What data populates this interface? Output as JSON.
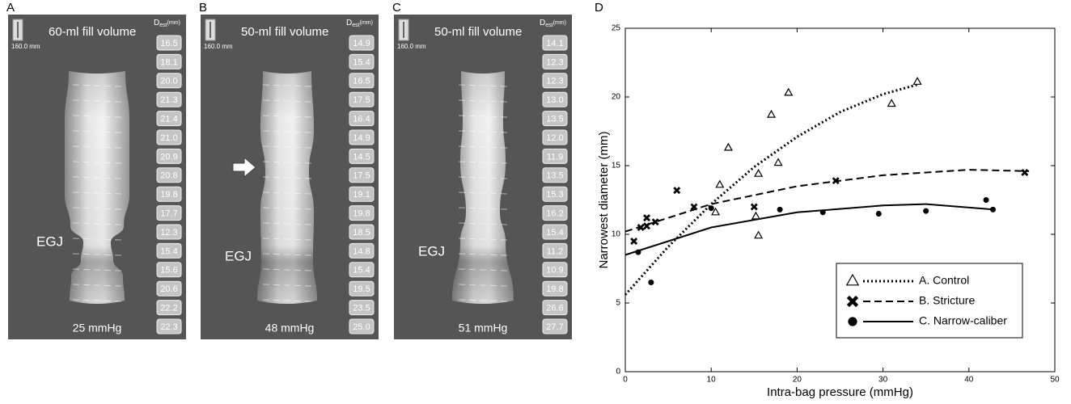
{
  "panels": [
    {
      "letter": "A",
      "title": "60-ml fill volume",
      "scale": "160.0 mm",
      "dest_symbol": "D",
      "dest_subscript": "est",
      "dest_unit": "(mm)",
      "egj": "EGJ",
      "pressure": "25 mmHg",
      "diameters": [
        "16.5",
        "18.1",
        "20.0",
        "21.3",
        "21.4",
        "21.0",
        "20.9",
        "20.8",
        "19.8",
        "17.7",
        "12.3",
        "15.4",
        "15.6",
        "20.6",
        "22.2",
        "22.3"
      ]
    },
    {
      "letter": "B",
      "title": "50-ml fill volume",
      "scale": "160.0 mm",
      "dest_symbol": "D",
      "dest_subscript": "est",
      "dest_unit": "(mm)",
      "egj": "EGJ",
      "pressure": "48 mmHg",
      "diameters": [
        "14.9",
        "15.4",
        "16.5",
        "17.5",
        "16.4",
        "14.9",
        "14.5",
        "17.5",
        "19.1",
        "19.8",
        "18.5",
        "14.8",
        "15.4",
        "19.5",
        "23.5",
        "25.0"
      ]
    },
    {
      "letter": "C",
      "title": "50-ml fill volume",
      "scale": "160.0 mm",
      "dest_symbol": "D",
      "dest_subscript": "est",
      "dest_unit": "(mm)",
      "egj": "EGJ",
      "pressure": "51 mmHg",
      "diameters": [
        "14.1",
        "12.3",
        "12.3",
        "13.0",
        "13.5",
        "12.0",
        "11.9",
        "13.5",
        "15.3",
        "16.2",
        "15.4",
        "11.2",
        "10.9",
        "19.8",
        "26.6",
        "27.7"
      ]
    }
  ],
  "chart_data": {
    "type": "scatter",
    "letter": "D",
    "x_label": "Intra-bag pressure (mmHg)",
    "y_label": "Narrowest diameter (mm)",
    "xlim": [
      0,
      50
    ],
    "xticks": [
      0,
      10,
      20,
      30,
      40,
      50
    ],
    "ylim": [
      0,
      25
    ],
    "yticks": [
      0,
      5,
      10,
      15,
      20,
      25
    ],
    "legend": "lower right",
    "series": [
      {
        "name": "A. Control",
        "color": "#000000",
        "marker": "triangle",
        "dash": "dotted",
        "x": [
          34,
          31,
          19,
          17,
          17.8,
          15.5,
          12,
          11,
          10.5,
          15.2,
          15.5
        ],
        "values": [
          21.1,
          19.5,
          20.3,
          18.7,
          15.2,
          14.4,
          16.3,
          13.6,
          11.6,
          11.3,
          9.9
        ],
        "fit": {
          "x": [
            0,
            5,
            10,
            15,
            20,
            25,
            30,
            34
          ],
          "values": [
            5.6,
            9.1,
            12.2,
            14.9,
            17.1,
            18.9,
            20.2,
            20.9
          ]
        }
      },
      {
        "name": "B. Stricture",
        "color": "#000000",
        "marker": "x",
        "dash": "dashed",
        "x": [
          46.5,
          24.5,
          8,
          6,
          15,
          3.5,
          2.5,
          2.5,
          1.8,
          1
        ],
        "values": [
          14.5,
          13.9,
          12,
          13.2,
          12,
          10.9,
          11.2,
          10.6,
          10.5,
          9.5
        ],
        "fit": {
          "x": [
            0,
            10,
            20,
            30,
            40,
            47
          ],
          "values": [
            10.2,
            12.2,
            13.5,
            14.3,
            14.7,
            14.6
          ]
        }
      },
      {
        "name": "C. Narrow-caliber",
        "color": "#000000",
        "marker": "circle",
        "dash": "solid",
        "x": [
          42.8,
          42,
          35,
          29.5,
          23,
          18,
          10,
          1.5,
          3
        ],
        "values": [
          11.8,
          12.5,
          11.7,
          11.5,
          11.6,
          11.8,
          11.9,
          8.7,
          6.5
        ],
        "fit": {
          "x": [
            0,
            10,
            20,
            30,
            35,
            43
          ],
          "values": [
            8.5,
            10.5,
            11.6,
            12.1,
            12.2,
            11.8
          ]
        }
      }
    ]
  }
}
